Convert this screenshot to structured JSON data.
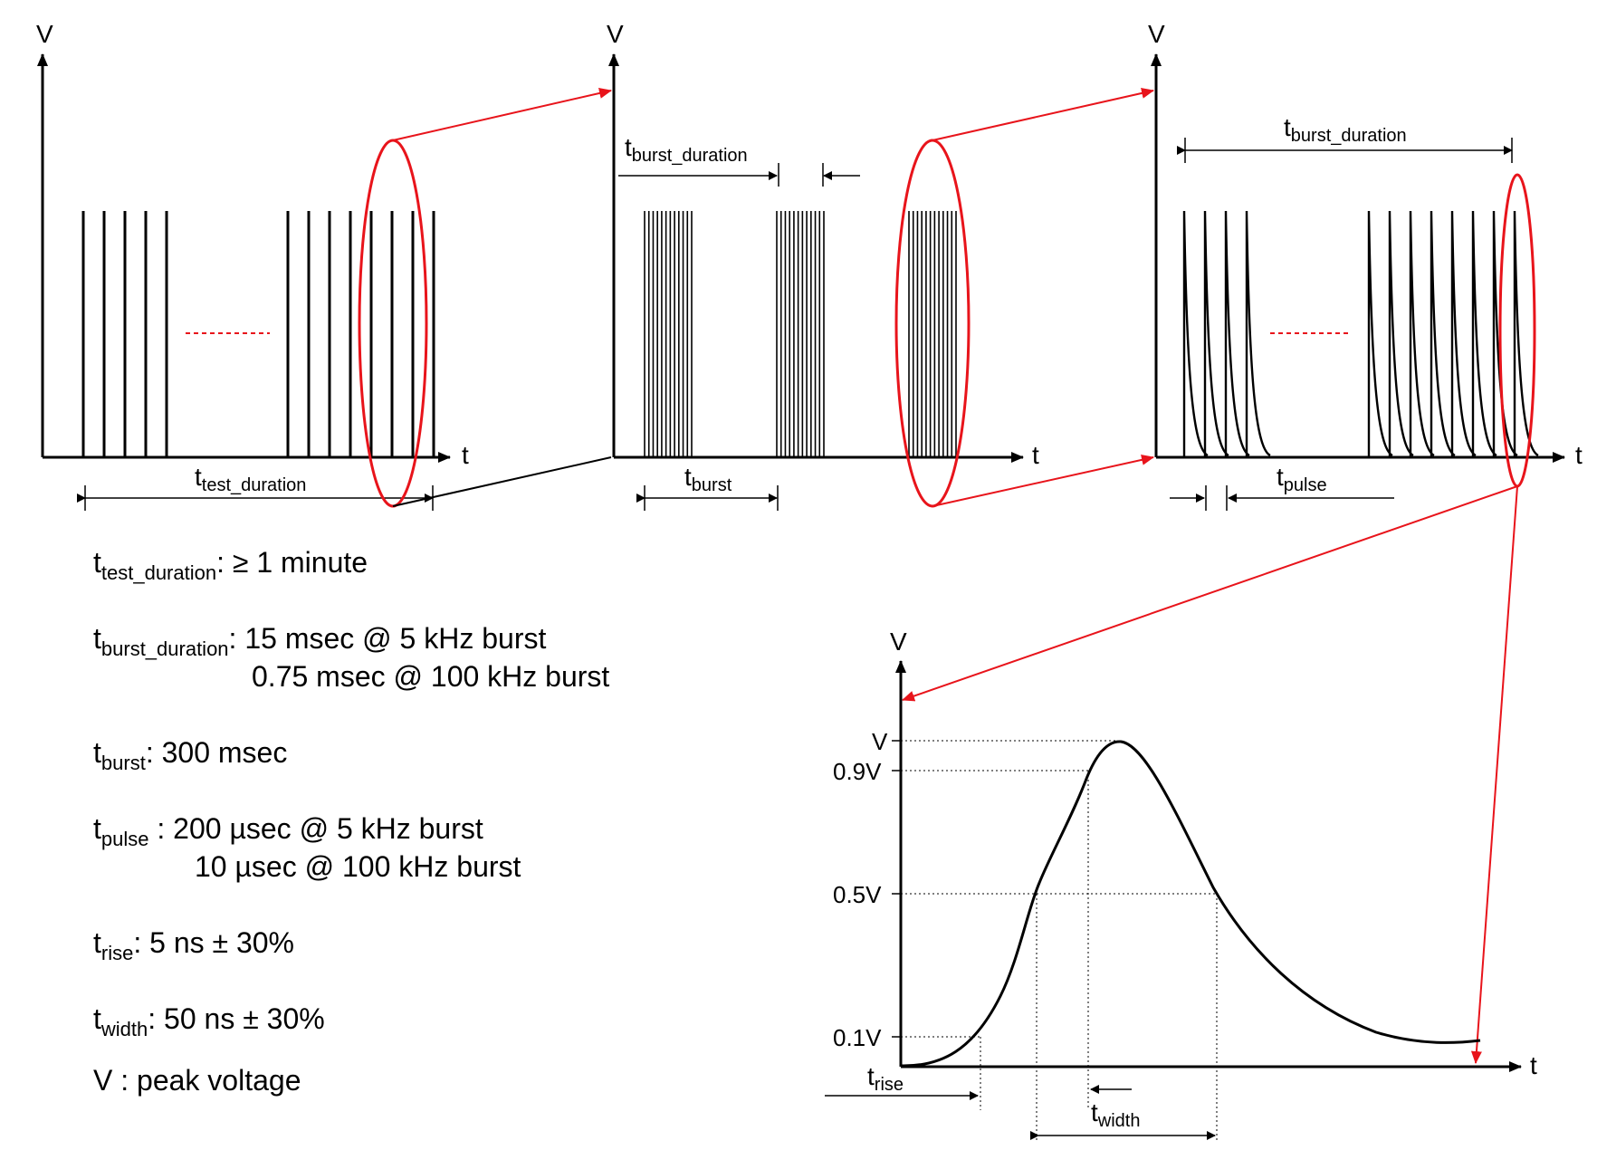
{
  "panels": {
    "p1": {
      "y_axis": "V",
      "x_axis": "t",
      "dim_main": "t",
      "dim_sub": "test_duration"
    },
    "p2": {
      "y_axis": "V",
      "x_axis": "t",
      "top_main": "t",
      "top_sub": "burst_duration",
      "dim_main": "t",
      "dim_sub": "burst"
    },
    "p3": {
      "y_axis": "V",
      "x_axis": "t",
      "top_main": "t",
      "top_sub": "burst_duration",
      "dim_main": "t",
      "dim_sub": "pulse"
    },
    "p4": {
      "y_axis": "V",
      "x_axis": "t",
      "levels": [
        "V",
        "0.9V",
        "0.5V",
        "0.1V"
      ],
      "rise_main": "t",
      "rise_sub": "rise",
      "width_main": "t",
      "width_sub": "width"
    }
  },
  "definitions": [
    {
      "sym": "t",
      "sub": "test_duration",
      "lines": [
        ": ≥ 1 minute"
      ]
    },
    {
      "sym": "t",
      "sub": "burst_duration",
      "lines": [
        ": 15 msec @ 5 kHz burst",
        "0.75 msec @ 100 kHz burst"
      ]
    },
    {
      "sym": "t",
      "sub": "burst",
      "lines": [
        ": 300 msec"
      ]
    },
    {
      "sym": "t",
      "sub": "pulse",
      "lines": [
        " : 200 µsec @ 5 kHz burst",
        "10 µsec @ 100 kHz burst"
      ]
    },
    {
      "sym": "t",
      "sub": "rise",
      "lines": [
        ": 5 ns ± 30%"
      ]
    },
    {
      "sym": "t",
      "sub": "width",
      "lines": [
        ": 50 ns ± 30%"
      ]
    },
    {
      "sym": "V",
      "sub": "",
      "lines": [
        " : peak voltage"
      ]
    }
  ],
  "colors": {
    "accent": "#e8141b",
    "line": "#000000"
  }
}
